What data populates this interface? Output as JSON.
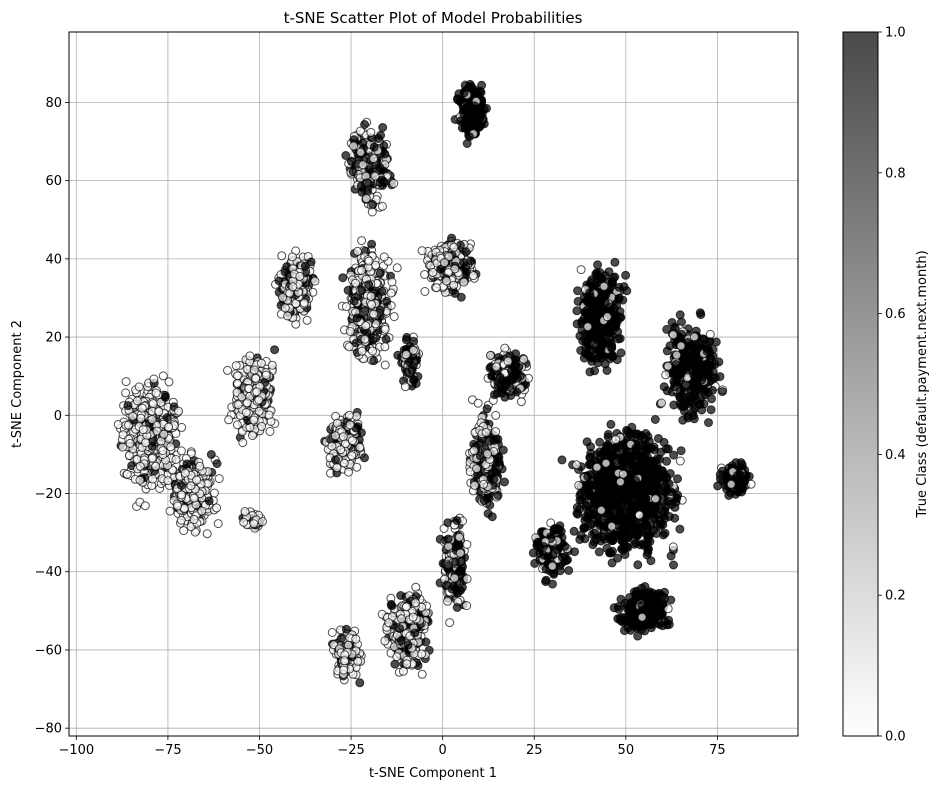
{
  "chart_data": {
    "type": "scatter",
    "title": "t-SNE Scatter Plot of Model Probabilities",
    "xlabel": "t-SNE Component 1",
    "ylabel": "t-SNE Component 2",
    "xlim": [
      -102,
      97
    ],
    "ylim": [
      -82,
      98
    ],
    "xticks": [
      -100,
      -75,
      -50,
      -25,
      0,
      25,
      50,
      75
    ],
    "xtick_labels": [
      "−100",
      "−75",
      "−50",
      "−25",
      "0",
      "25",
      "50",
      "75"
    ],
    "yticks": [
      -80,
      -60,
      -40,
      -20,
      0,
      20,
      40,
      60,
      80
    ],
    "ytick_labels": [
      "−80",
      "−60",
      "−40",
      "−20",
      "0",
      "20",
      "40",
      "60",
      "80"
    ],
    "grid": true,
    "colormap": "Greys",
    "marker_edge_color": "#000000",
    "marker_alpha": 0.7,
    "colorbar": {
      "label": "True Class (default.payment.next.month)",
      "range": [
        0.0,
        1.0
      ],
      "ticks": [
        0.0,
        0.2,
        0.4,
        0.6,
        0.8,
        1.0
      ],
      "tick_labels": [
        "0.0",
        "0.2",
        "0.4",
        "0.6",
        "0.8",
        "1.0"
      ]
    },
    "clusters": [
      {
        "cx": -80,
        "cy": -5,
        "rx": 12,
        "ry": 22,
        "n": 520,
        "p_one": 0.12
      },
      {
        "cx": -68,
        "cy": -20,
        "rx": 10,
        "ry": 14,
        "n": 280,
        "p_one": 0.12
      },
      {
        "cx": -52,
        "cy": -27,
        "rx": 5,
        "ry": 3,
        "n": 50,
        "p_one": 0.1
      },
      {
        "cx": -52,
        "cy": 5,
        "rx": 9,
        "ry": 16,
        "n": 330,
        "p_one": 0.14
      },
      {
        "cx": -40,
        "cy": 33,
        "rx": 7,
        "ry": 13,
        "n": 230,
        "p_one": 0.18
      },
      {
        "cx": -27,
        "cy": -7,
        "rx": 8,
        "ry": 12,
        "n": 220,
        "p_one": 0.18
      },
      {
        "cx": -20,
        "cy": 28,
        "rx": 10,
        "ry": 22,
        "n": 420,
        "p_one": 0.24
      },
      {
        "cx": -20,
        "cy": 64,
        "rx": 9,
        "ry": 15,
        "n": 260,
        "p_one": 0.5
      },
      {
        "cx": -9,
        "cy": 14,
        "rx": 4,
        "ry": 10,
        "n": 110,
        "p_one": 0.35
      },
      {
        "cx": 2,
        "cy": 38,
        "rx": 10,
        "ry": 10,
        "n": 330,
        "p_one": 0.3
      },
      {
        "cx": 8,
        "cy": 78,
        "rx": 6,
        "ry": 11,
        "n": 240,
        "p_one": 0.95
      },
      {
        "cx": -26,
        "cy": -61,
        "rx": 6,
        "ry": 10,
        "n": 160,
        "p_one": 0.2
      },
      {
        "cx": -10,
        "cy": -55,
        "rx": 10,
        "ry": 15,
        "n": 340,
        "p_one": 0.28
      },
      {
        "cx": 3,
        "cy": -38,
        "rx": 5,
        "ry": 18,
        "n": 190,
        "p_one": 0.45
      },
      {
        "cx": 12,
        "cy": -12,
        "rx": 7,
        "ry": 20,
        "n": 260,
        "p_one": 0.4
      },
      {
        "cx": 18,
        "cy": 10,
        "rx": 8,
        "ry": 9,
        "n": 220,
        "p_one": 0.65
      },
      {
        "cx": 43,
        "cy": 25,
        "rx": 9,
        "ry": 20,
        "n": 420,
        "p_one": 0.93
      },
      {
        "cx": 68,
        "cy": 12,
        "rx": 11,
        "ry": 18,
        "n": 380,
        "p_one": 0.93
      },
      {
        "cx": 50,
        "cy": -20,
        "rx": 20,
        "ry": 24,
        "n": 1300,
        "p_one": 0.93
      },
      {
        "cx": 80,
        "cy": -16,
        "rx": 6,
        "ry": 6,
        "n": 150,
        "p_one": 0.95
      },
      {
        "cx": 30,
        "cy": -35,
        "rx": 7,
        "ry": 11,
        "n": 180,
        "p_one": 0.75
      },
      {
        "cx": 55,
        "cy": -50,
        "rx": 10,
        "ry": 8,
        "n": 320,
        "p_one": 0.95
      }
    ]
  }
}
